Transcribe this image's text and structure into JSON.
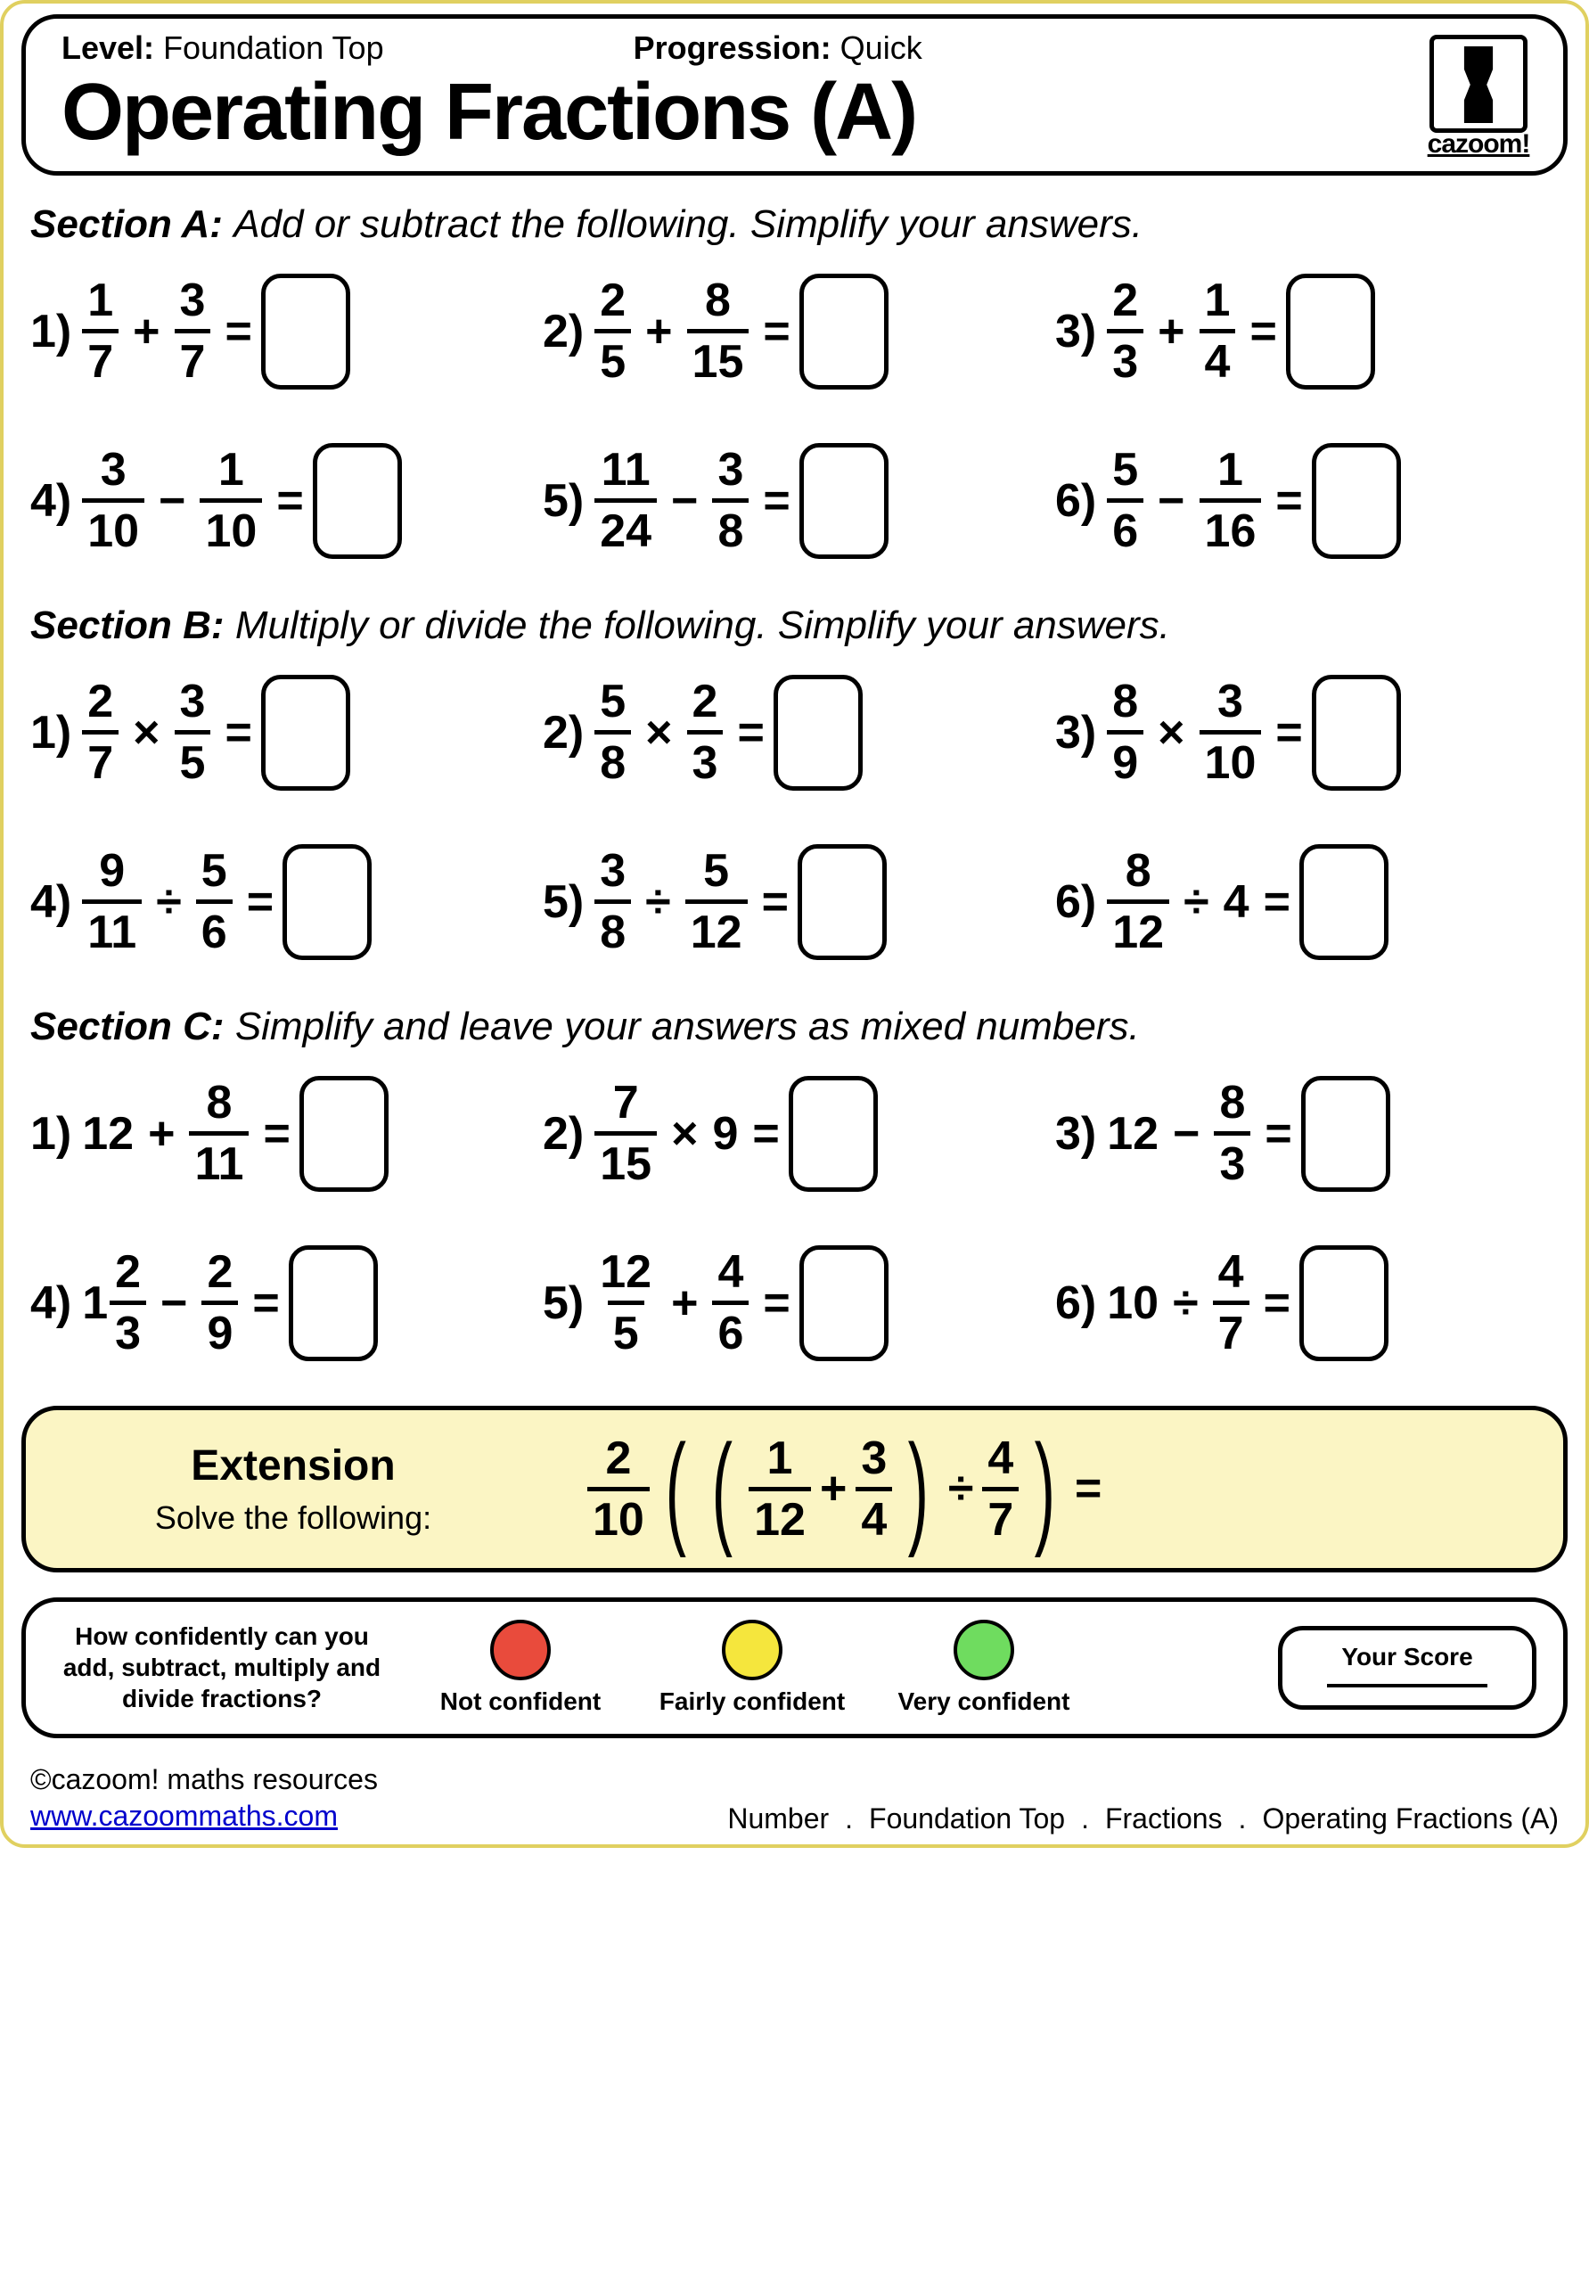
{
  "header": {
    "level_label": "Level:",
    "level_value": "Foundation Top",
    "progression_label": "Progression:",
    "progression_value": "Quick",
    "title": "Operating Fractions (A)",
    "logo_text": "cazoom!"
  },
  "sections": [
    {
      "label": "Section A:",
      "instruction": "Add or subtract the following. Simplify your answers.",
      "problems": [
        {
          "n": "1)",
          "a": {
            "num": "1",
            "den": "7"
          },
          "op": "+",
          "b": {
            "num": "3",
            "den": "7"
          }
        },
        {
          "n": "2)",
          "a": {
            "num": "2",
            "den": "5"
          },
          "op": "+",
          "b": {
            "num": "8",
            "den": "15"
          }
        },
        {
          "n": "3)",
          "a": {
            "num": "2",
            "den": "3"
          },
          "op": "+",
          "b": {
            "num": "1",
            "den": "4"
          }
        },
        {
          "n": "4)",
          "a": {
            "num": "3",
            "den": "10"
          },
          "op": "−",
          "b": {
            "num": "1",
            "den": "10"
          }
        },
        {
          "n": "5)",
          "a": {
            "num": "11",
            "den": "24"
          },
          "op": "−",
          "b": {
            "num": "3",
            "den": "8"
          }
        },
        {
          "n": "6)",
          "a": {
            "num": "5",
            "den": "6"
          },
          "op": "−",
          "b": {
            "num": "1",
            "den": "16"
          }
        }
      ]
    },
    {
      "label": "Section B:",
      "instruction": "Multiply or divide the following. Simplify your answers.",
      "problems": [
        {
          "n": "1)",
          "a": {
            "num": "2",
            "den": "7"
          },
          "op": "×",
          "b": {
            "num": "3",
            "den": "5"
          }
        },
        {
          "n": "2)",
          "a": {
            "num": "5",
            "den": "8"
          },
          "op": "×",
          "b": {
            "num": "2",
            "den": "3"
          }
        },
        {
          "n": "3)",
          "a": {
            "num": "8",
            "den": "9"
          },
          "op": "×",
          "b": {
            "num": "3",
            "den": "10"
          }
        },
        {
          "n": "4)",
          "a": {
            "num": "9",
            "den": "11"
          },
          "op": "÷",
          "b": {
            "num": "5",
            "den": "6"
          }
        },
        {
          "n": "5)",
          "a": {
            "num": "3",
            "den": "8"
          },
          "op": "÷",
          "b": {
            "num": "5",
            "den": "12"
          }
        },
        {
          "n": "6)",
          "a": {
            "num": "8",
            "den": "12"
          },
          "op": "÷",
          "b": {
            "whole": "4"
          }
        }
      ]
    },
    {
      "label": "Section C:",
      "instruction": "Simplify and leave your answers as mixed numbers.",
      "problems": [
        {
          "n": "1)",
          "a": {
            "whole": "12"
          },
          "op": "+",
          "b": {
            "num": "8",
            "den": "11"
          }
        },
        {
          "n": "2)",
          "a": {
            "num": "7",
            "den": "15"
          },
          "op": "×",
          "b": {
            "whole": "9"
          }
        },
        {
          "n": "3)",
          "a": {
            "whole": "12"
          },
          "op": "−",
          "b": {
            "num": "8",
            "den": "3"
          }
        },
        {
          "n": "4)",
          "a": {
            "mixed_whole": "1",
            "num": "2",
            "den": "3"
          },
          "op": "−",
          "b": {
            "num": "2",
            "den": "9"
          }
        },
        {
          "n": "5)",
          "a": {
            "num": "12",
            "den": "5"
          },
          "op": "+",
          "b": {
            "num": "4",
            "den": "6"
          }
        },
        {
          "n": "6)",
          "a": {
            "whole": "10"
          },
          "op": "÷",
          "b": {
            "num": "4",
            "den": "7"
          }
        }
      ]
    }
  ],
  "extension": {
    "title": "Extension",
    "subtitle": "Solve the following:",
    "outer": {
      "num": "2",
      "den": "10"
    },
    "inner_a": {
      "num": "1",
      "den": "12"
    },
    "inner_op": "+",
    "inner_b": {
      "num": "3",
      "den": "4"
    },
    "div_op": "÷",
    "divisor": {
      "num": "4",
      "den": "7"
    },
    "equals": "="
  },
  "confidence": {
    "question": "How confidently can you add, subtract, multiply and divide fractions?",
    "levels": [
      {
        "label": "Not confident",
        "color": "#e94b3c"
      },
      {
        "label": "Fairly confident",
        "color": "#f5e63d"
      },
      {
        "label": "Very confident",
        "color": "#6fdc5f"
      }
    ],
    "score_label": "Your Score"
  },
  "footer": {
    "copyright": "©cazoom! maths resources",
    "url": "www.cazoommaths.com",
    "breadcrumb": [
      "Number",
      ".",
      "Foundation Top",
      ".",
      "Fractions",
      ".",
      "Operating Fractions (A)"
    ]
  },
  "colors": {
    "page_border": "#e0d060",
    "extension_bg": "#fbf5c4"
  }
}
